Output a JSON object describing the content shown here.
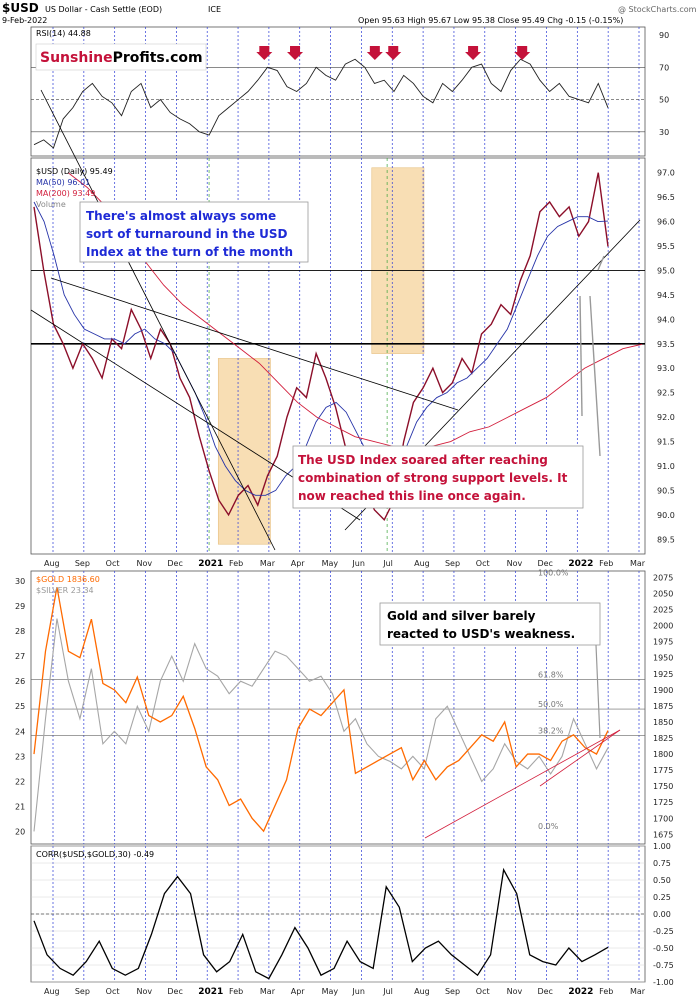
{
  "header": {
    "symbol": "$USD",
    "name": "US Dollar - Cash Settle (EOD)",
    "exchange": "ICE",
    "date": "9-Feb-2022",
    "ohlc": "Open 95.63  High 95.67  Low 95.38  Close 95.49  Chg -0.15 (-0.15%)",
    "watermark": "@ StockCharts.com"
  },
  "logo": {
    "part1": "Sunshine",
    "part2": "Profits.com"
  },
  "colors": {
    "usd": "#8c0f2a",
    "ma50": "#2633a8",
    "ma200": "#d21e3c",
    "gold": "#ff6a00",
    "silver": "#a6a6a6",
    "corr": "#000000",
    "highlight": "#f7d9a8",
    "arrow": "#c4123a",
    "blueGrid": "#2c3bd6",
    "greenGrid": "#3aa33a"
  },
  "chart_data": [
    {
      "type": "line",
      "name": "RSI panel",
      "legend": [
        "RSI(14) 44.88"
      ],
      "yticks": [
        30,
        50,
        70,
        90
      ],
      "ylim": [
        15,
        95
      ],
      "reference_lines": [
        30,
        50,
        70
      ],
      "series": [
        {
          "name": "RSI(14)",
          "values": [
            22,
            25,
            20,
            38,
            45,
            55,
            60,
            52,
            48,
            40,
            55,
            60,
            45,
            50,
            42,
            38,
            35,
            30,
            28,
            40,
            45,
            50,
            55,
            62,
            70,
            68,
            58,
            55,
            60,
            70,
            65,
            62,
            72,
            75,
            70,
            60,
            62,
            55,
            65,
            60,
            52,
            48,
            60,
            55,
            62,
            70,
            72,
            60,
            55,
            68,
            75,
            72,
            62,
            55,
            60,
            52,
            50,
            48,
            60,
            44.88
          ]
        }
      ],
      "markers": [
        "down-arrow",
        "down-arrow",
        "down-arrow",
        "down-arrow",
        "down-arrow",
        "down-arrow"
      ]
    },
    {
      "type": "line",
      "name": "USD price panel",
      "legend": [
        "$USD (Daily) 95.49",
        "MA(50) 96.01",
        "MA(200) 93.49",
        "Volume"
      ],
      "yticks": [
        89.5,
        90.0,
        90.5,
        91.0,
        91.5,
        92.0,
        92.5,
        93.0,
        93.5,
        94.0,
        94.5,
        95.0,
        95.5,
        96.0,
        96.5,
        97.0
      ],
      "ylim": [
        89.2,
        97.3
      ],
      "series": [
        {
          "name": "$USD",
          "values": [
            96.3,
            95.0,
            93.9,
            93.5,
            93.0,
            93.5,
            93.2,
            92.8,
            93.6,
            93.4,
            94.2,
            93.8,
            93.2,
            93.8,
            93.5,
            92.8,
            92.4,
            91.6,
            90.9,
            90.3,
            90.0,
            90.4,
            90.6,
            90.2,
            90.8,
            91.2,
            92.0,
            92.6,
            92.4,
            93.3,
            92.8,
            92.2,
            91.4,
            91.1,
            90.5,
            90.1,
            89.9,
            90.3,
            91.5,
            92.3,
            92.6,
            93.0,
            92.5,
            92.7,
            93.2,
            92.9,
            93.7,
            93.9,
            94.3,
            94.1,
            94.8,
            95.3,
            96.2,
            96.4,
            96.1,
            96.3,
            95.7,
            96.0,
            97.0,
            95.49
          ]
        },
        {
          "name": "MA(50)",
          "values": [
            96.4,
            96.0,
            95.3,
            94.5,
            94.1,
            93.8,
            93.7,
            93.6,
            93.6,
            93.5,
            93.7,
            93.8,
            93.6,
            93.5,
            93.3,
            92.9,
            92.5,
            92.0,
            91.4,
            91.0,
            90.7,
            90.5,
            90.4,
            90.4,
            90.5,
            90.8,
            91.0,
            91.4,
            91.9,
            92.2,
            92.3,
            92.1,
            91.7,
            91.3,
            91.0,
            90.9,
            91.0,
            91.4,
            91.9,
            92.2,
            92.4,
            92.5,
            92.7,
            92.8,
            93.0,
            93.2,
            93.5,
            93.8,
            94.3,
            94.8,
            95.3,
            95.7,
            95.9,
            96.0,
            96.1,
            96.1,
            96.0,
            96.01
          ]
        },
        {
          "name": "MA(200)",
          "values": [
            97.0,
            96.7,
            96.3,
            95.8,
            95.2,
            94.7,
            94.3,
            94.0,
            93.7,
            93.4,
            93.1,
            92.7,
            92.3,
            92.0,
            91.8,
            91.6,
            91.5,
            91.4,
            91.4,
            91.4,
            91.5,
            91.7,
            91.8,
            92.0,
            92.2,
            92.4,
            92.7,
            93.0,
            93.2,
            93.4,
            93.49
          ]
        }
      ],
      "horizontal_lines": [
        95.0,
        93.5
      ],
      "highlight_boxes": [
        {
          "xfrac": [
            0.305,
            0.39
          ],
          "yrange": [
            89.4,
            93.2
          ]
        },
        {
          "xfrac": [
            0.555,
            0.64
          ],
          "yrange": [
            93.3,
            97.1
          ]
        }
      ],
      "annotations": [
        {
          "text": "There's almost always some",
          "color": "blue"
        },
        {
          "text": "sort of turnaround in the USD",
          "color": "blue"
        },
        {
          "text": "Index at the turn of the month",
          "color": "blue"
        },
        {
          "text": "The USD Index soared after reaching",
          "color": "red"
        },
        {
          "text": "combination of strong support levels. It",
          "color": "red"
        },
        {
          "text": "now reached this line once again.",
          "color": "red"
        }
      ]
    },
    {
      "type": "line",
      "name": "Gold and silver panel",
      "legend": [
        "$GOLD 1836.60",
        "$SILVER 23.34"
      ],
      "yticks_left": [
        20,
        21,
        22,
        23,
        24,
        25,
        26,
        27,
        28,
        29,
        30
      ],
      "yticks_right": [
        1675,
        1700,
        1725,
        1750,
        1775,
        1800,
        1825,
        1850,
        1875,
        1900,
        1925,
        1950,
        1975,
        2000,
        2025,
        2050,
        2075
      ],
      "ylim_left": [
        19.5,
        30.4
      ],
      "ylim_right": [
        1660,
        2085
      ],
      "fib_labels": [
        "100.0%",
        "61.8%",
        "50.0%",
        "38.2%",
        "0.0%"
      ],
      "fib_levels": [
        2075,
        1916,
        1870,
        1829,
        1680
      ],
      "series": [
        {
          "name": "$GOLD",
          "axis": "right",
          "values": [
            1800,
            1960,
            2060,
            1960,
            1950,
            2010,
            1910,
            1900,
            1880,
            1920,
            1860,
            1850,
            1860,
            1890,
            1840,
            1780,
            1760,
            1720,
            1730,
            1700,
            1680,
            1720,
            1760,
            1840,
            1870,
            1860,
            1880,
            1900,
            1770,
            1780,
            1790,
            1800,
            1810,
            1760,
            1790,
            1760,
            1780,
            1790,
            1810,
            1830,
            1820,
            1850,
            1780,
            1800,
            1800,
            1790,
            1820,
            1830,
            1810,
            1800,
            1836.6
          ]
        },
        {
          "name": "$SILVER",
          "axis": "left",
          "values": [
            20.0,
            24.5,
            28.5,
            26.0,
            24.5,
            26.5,
            23.5,
            24.0,
            23.5,
            25.0,
            24.0,
            26.0,
            27.0,
            26.0,
            27.5,
            26.5,
            26.2,
            25.5,
            26.0,
            25.8,
            26.5,
            27.2,
            27.0,
            26.5,
            26.0,
            26.2,
            25.5,
            24.0,
            24.5,
            23.5,
            23.0,
            22.8,
            22.5,
            23.0,
            22.5,
            24.5,
            25.0,
            24.0,
            23.0,
            22.0,
            22.5,
            23.5,
            22.8,
            22.5,
            23.0,
            22.3,
            23.0,
            24.5,
            23.5,
            22.5,
            23.34
          ]
        }
      ],
      "annotations": [
        {
          "text": "Gold and silver barely",
          "color": "black"
        },
        {
          "text": "reacted to USD's weakness.",
          "color": "black"
        }
      ]
    },
    {
      "type": "line",
      "name": "Correlation panel",
      "legend": [
        "CORR($USD,$GOLD,30) -0.49"
      ],
      "yticks": [
        "1.00",
        "0.75",
        "0.50",
        "0.25",
        "0.00",
        "-0.25",
        "-0.50",
        "-0.75",
        "-1.00"
      ],
      "ylim": [
        -1.0,
        1.0
      ],
      "series": [
        {
          "name": "CORR($USD,$GOLD,30)",
          "values": [
            -0.1,
            -0.6,
            -0.8,
            -0.9,
            -0.7,
            -0.4,
            -0.8,
            -0.9,
            -0.8,
            -0.3,
            0.3,
            0.55,
            0.3,
            -0.6,
            -0.85,
            -0.7,
            -0.3,
            -0.85,
            -0.95,
            -0.6,
            -0.2,
            -0.5,
            -0.9,
            -0.8,
            -0.4,
            -0.7,
            -0.8,
            0.4,
            0.1,
            -0.7,
            -0.5,
            -0.4,
            -0.6,
            -0.75,
            -0.9,
            -0.6,
            0.65,
            0.3,
            -0.6,
            -0.7,
            -0.75,
            -0.5,
            -0.7,
            -0.6,
            -0.49
          ]
        }
      ],
      "reference_lines": [
        0.0
      ]
    }
  ],
  "x_axis": {
    "month_labels": [
      "Aug",
      "Sep",
      "Oct",
      "Nov",
      "Dec",
      "2021",
      "Feb",
      "Mar",
      "Apr",
      "May",
      "Jun",
      "Jul",
      "Aug",
      "Sep",
      "Oct",
      "Nov",
      "Dec",
      "2022",
      "Feb",
      "Mar"
    ]
  }
}
